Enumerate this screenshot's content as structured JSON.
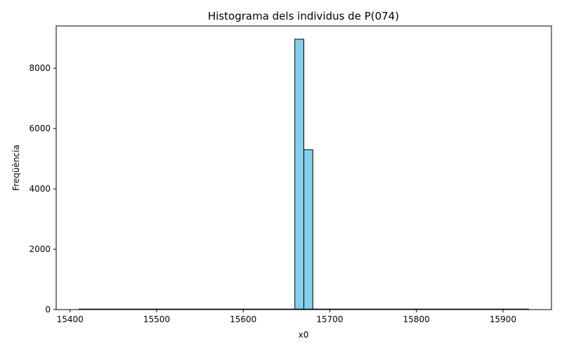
{
  "chart_data": {
    "type": "bar",
    "title": "Histograma dels individus de P(074)",
    "xlabel": "x0",
    "ylabel": "Freqüència",
    "xlim": [
      15384,
      15956
    ],
    "ylim": [
      0,
      9400
    ],
    "xticks": [
      15400,
      15500,
      15600,
      15700,
      15800,
      15900
    ],
    "yticks": [
      0,
      2000,
      4000,
      6000,
      8000
    ],
    "x_range": [
      15410,
      15930
    ],
    "bin_width": 10.4,
    "bins": [
      {
        "x0": 15659.6,
        "x1": 15670.0,
        "value": 8960
      },
      {
        "x0": 15670.0,
        "x1": 15680.4,
        "value": 5300
      }
    ],
    "bar_color": "#87ceeb",
    "edge_color": "#000000",
    "grid": false,
    "legend": "none"
  }
}
